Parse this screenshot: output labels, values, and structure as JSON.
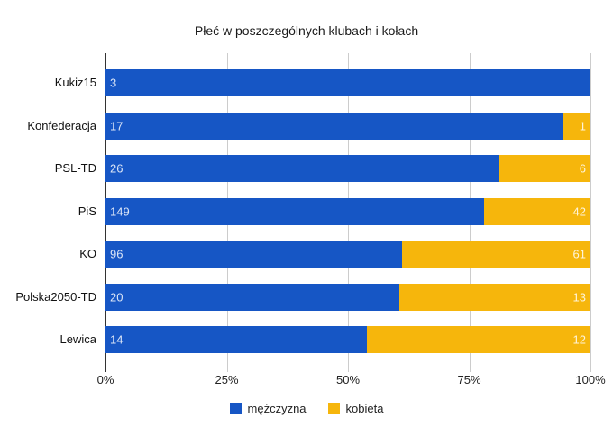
{
  "title": "Płeć w poszczególnych klubach i kołach",
  "chart_data": {
    "type": "bar",
    "orientation": "horizontal",
    "stacked": "percent",
    "title": "Płeć w poszczególnych klubach i kołach",
    "categories": [
      "Kukiz15",
      "Konfederacja",
      "PSL-TD",
      "PiS",
      "KO",
      "Polska2050-TD",
      "Lewica"
    ],
    "series": [
      {
        "name": "mężczyzna",
        "color": "#1656C5",
        "values": [
          3,
          17,
          26,
          149,
          96,
          20,
          14
        ]
      },
      {
        "name": "kobieta",
        "color": "#F6B60C",
        "values": [
          0,
          1,
          6,
          42,
          61,
          13,
          12
        ]
      }
    ],
    "xlabel": "",
    "ylabel": "",
    "xlim": [
      0,
      100
    ],
    "x_ticks": [
      "0%",
      "25%",
      "50%",
      "75%",
      "100%"
    ],
    "grid": true,
    "legend_position": "bottom"
  },
  "colors": {
    "male": "#1656C5",
    "female": "#F6B60C",
    "gridline": "#cccccc",
    "axis_line": "#333333",
    "text": "#222222"
  }
}
